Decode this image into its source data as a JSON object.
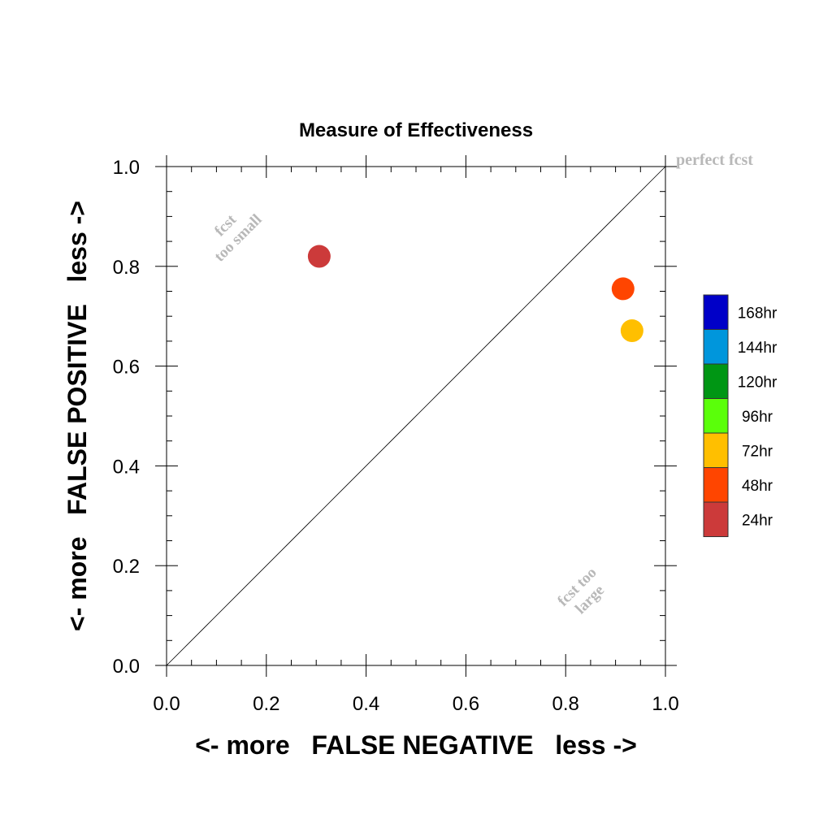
{
  "chart_data": {
    "type": "scatter",
    "title": "Measure of Effectiveness",
    "xlabel": "<- more   FALSE NEGATIVE   less ->",
    "ylabel": "<- more   FALSE POSITIVE   less ->",
    "xlim": [
      0.0,
      1.0
    ],
    "ylim": [
      0.0,
      1.0
    ],
    "x_ticks": [
      "0.0",
      "0.2",
      "0.4",
      "0.6",
      "0.8",
      "1.0"
    ],
    "y_ticks": [
      "0.0",
      "0.2",
      "0.4",
      "0.6",
      "0.8",
      "1.0"
    ],
    "grid": false,
    "diagonal_reference_line": true,
    "annotations": {
      "perfect": "perfect fcst",
      "small_line1": "fcst",
      "small_line2": "too small",
      "large_line1": "fcst too",
      "large_line2": "large"
    },
    "points": [
      {
        "lead": "24hr",
        "x": 0.306,
        "y": 0.82,
        "color": "#cc3a3a"
      },
      {
        "lead": "48hr",
        "x": 0.915,
        "y": 0.755,
        "color": "#ff4500"
      },
      {
        "lead": "72hr",
        "x": 0.933,
        "y": 0.671,
        "color": "#ffbf00"
      }
    ],
    "legend": {
      "placement": "right",
      "entries": [
        {
          "label": "168hr",
          "color": "#0000c8"
        },
        {
          "label": "144hr",
          "color": "#0096dc"
        },
        {
          "label": "120hr",
          "color": "#009614"
        },
        {
          "label": "96hr",
          "color": "#5aff0a"
        },
        {
          "label": "72hr",
          "color": "#ffbf00"
        },
        {
          "label": "48hr",
          "color": "#ff4500"
        },
        {
          "label": "24hr",
          "color": "#cc3a3a"
        }
      ]
    }
  }
}
